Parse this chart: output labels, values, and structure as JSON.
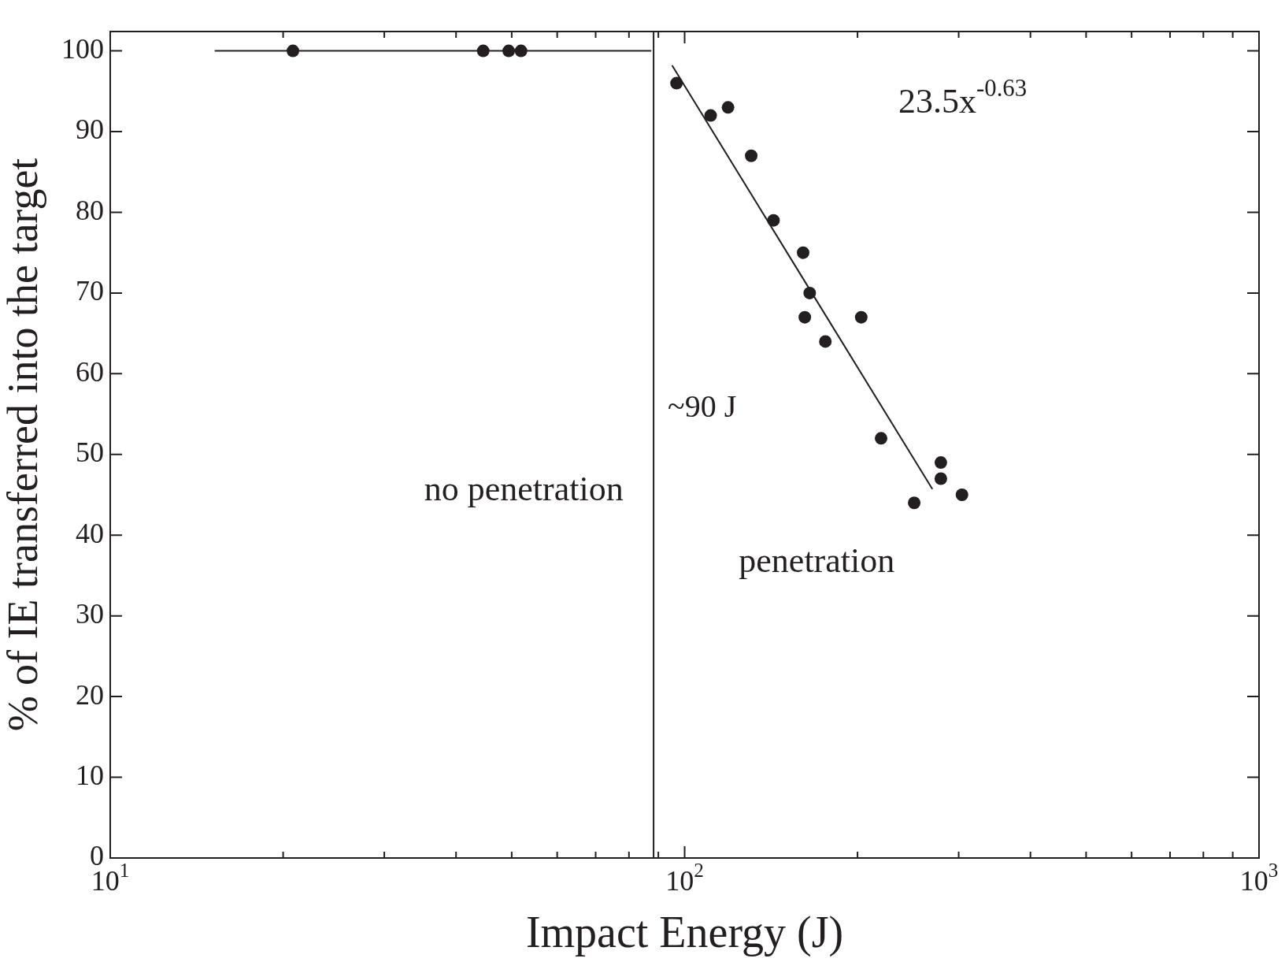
{
  "chart_data": {
    "type": "scatter",
    "xlabel": "Impact Energy (J)",
    "ylabel": "% of IE transferred into the target",
    "log": "x",
    "xlim": [
      10,
      1000
    ],
    "ylim": [
      0,
      102.4
    ],
    "xticks": [
      {
        "value": 10,
        "label": "10$^{1}$"
      },
      {
        "value": 20,
        "label": null
      },
      {
        "value": 30,
        "label": null
      },
      {
        "value": 40,
        "label": null
      },
      {
        "value": 50,
        "label": null
      },
      {
        "value": 60,
        "label": null
      },
      {
        "value": 70,
        "label": null
      },
      {
        "value": 80,
        "label": null
      },
      {
        "value": 90,
        "label": null
      },
      {
        "value": 100,
        "label": "10$^{2}$"
      },
      {
        "value": 200,
        "label": null
      },
      {
        "value": 300,
        "label": null
      },
      {
        "value": 400,
        "label": null
      },
      {
        "value": 500,
        "label": null
      },
      {
        "value": 600,
        "label": null
      },
      {
        "value": 700,
        "label": null
      },
      {
        "value": 800,
        "label": null
      },
      {
        "value": 900,
        "label": null
      },
      {
        "value": 1000,
        "label": "10$^{3}$"
      }
    ],
    "yticks": [
      0,
      10,
      20,
      30,
      40,
      50,
      60,
      70,
      80,
      90,
      100
    ],
    "line_style": "solid",
    "series": [
      {
        "marker": "circle",
        "color": "#231f20",
        "x": [
          20.8,
          44.6,
          49.4,
          51.9,
          96.8,
          111,
          119,
          130.6,
          142.8,
          160.8,
          165.1,
          161.9,
          203,
          175.8,
          219.8,
          279.3,
          279.3,
          251,
          304
        ],
        "values": [
          100,
          100,
          100,
          100,
          96,
          92,
          93,
          87,
          79,
          75,
          70,
          67,
          67,
          64,
          52,
          49,
          47,
          44,
          45
        ]
      },
      {
        "type": "line",
        "marker": "none",
        "color": "#231f20",
        "x": [
          15.2,
          87.5
        ],
        "values": [
          100,
          100
        ]
      },
      {
        "type": "line",
        "marker": "none",
        "color": "#231f20",
        "x": [
          95.1,
          270
        ],
        "values": [
          98.2,
          45.7
        ]
      }
    ],
    "ref_lines": [
      {
        "axis": "x",
        "value": 88.3,
        "label": "~90 J",
        "color": "#231f20"
      }
    ],
    "annotations": [
      "23.5x$^{-0.63}$",
      "no penetration",
      "penetration"
    ]
  }
}
